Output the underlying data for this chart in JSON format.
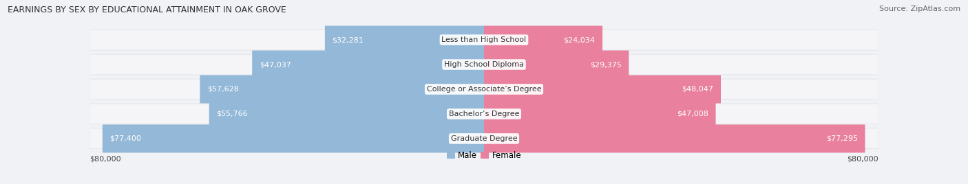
{
  "title": "EARNINGS BY SEX BY EDUCATIONAL ATTAINMENT IN OAK GROVE",
  "source": "Source: ZipAtlas.com",
  "categories": [
    "Less than High School",
    "High School Diploma",
    "College or Associate’s Degree",
    "Bachelor’s Degree",
    "Graduate Degree"
  ],
  "male_values": [
    32281,
    47037,
    57628,
    55766,
    77400
  ],
  "female_values": [
    24034,
    29375,
    48047,
    47008,
    77295
  ],
  "max_value": 80000,
  "male_color": "#93b8d8",
  "female_color": "#e8809e",
  "male_label": "Male",
  "female_label": "Female",
  "bg_row_color": "#e8eaf0",
  "bg_fig_color": "#f0f2f5",
  "label_color_outside": "#555555",
  "label_color_inside": "#ffffff",
  "axis_label": "$80,000",
  "title_fontsize": 9,
  "source_fontsize": 8,
  "bar_label_fontsize": 8,
  "cat_label_fontsize": 8,
  "row_bg_color": "#dfe1e8",
  "inner_bg_color": "#f5f5f8"
}
